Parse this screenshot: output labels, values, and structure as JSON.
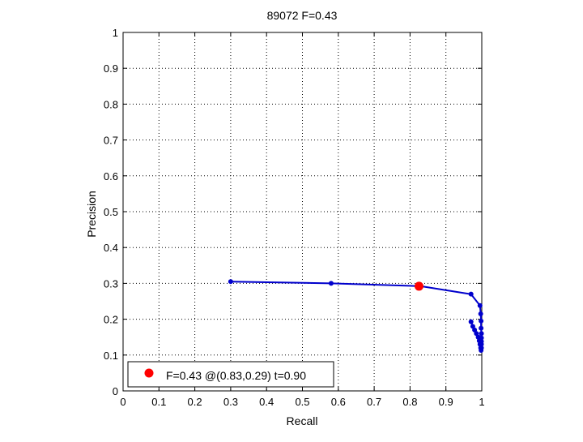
{
  "chart_data": {
    "type": "line",
    "title": "89072 F=0.43",
    "xlabel": "Recall",
    "ylabel": "Precision",
    "xlim": [
      0,
      1
    ],
    "ylim": [
      0,
      1
    ],
    "xticks": [
      "0",
      "0.1",
      "0.2",
      "0.3",
      "0.4",
      "0.5",
      "0.6",
      "0.7",
      "0.8",
      "0.9",
      "1"
    ],
    "yticks": [
      "0",
      "0.1",
      "0.2",
      "0.3",
      "0.4",
      "0.5",
      "0.6",
      "0.7",
      "0.8",
      "0.9",
      "1"
    ],
    "grid": true,
    "series": [
      {
        "color": "#0000cc",
        "marker": "dot",
        "x": [
          0.3,
          0.58,
          0.83,
          0.97,
          0.995,
          0.997,
          0.998,
          0.998,
          0.999,
          0.999,
          0.999,
          0.999,
          0.999,
          0.998,
          0.997,
          0.995,
          0.993,
          0.99,
          0.985,
          0.98,
          0.975,
          0.97
        ],
        "y": [
          0.305,
          0.3,
          0.292,
          0.27,
          0.238,
          0.215,
          0.195,
          0.175,
          0.16,
          0.148,
          0.138,
          0.13,
          0.12,
          0.113,
          0.12,
          0.13,
          0.14,
          0.15,
          0.16,
          0.17,
          0.18,
          0.193
        ]
      }
    ],
    "best_point": {
      "x": 0.825,
      "y": 0.292,
      "color": "#ff0000"
    },
    "legend": {
      "position": "bottom-left",
      "label": "F=0.43 @(0.83,0.29) t=0.90"
    }
  }
}
